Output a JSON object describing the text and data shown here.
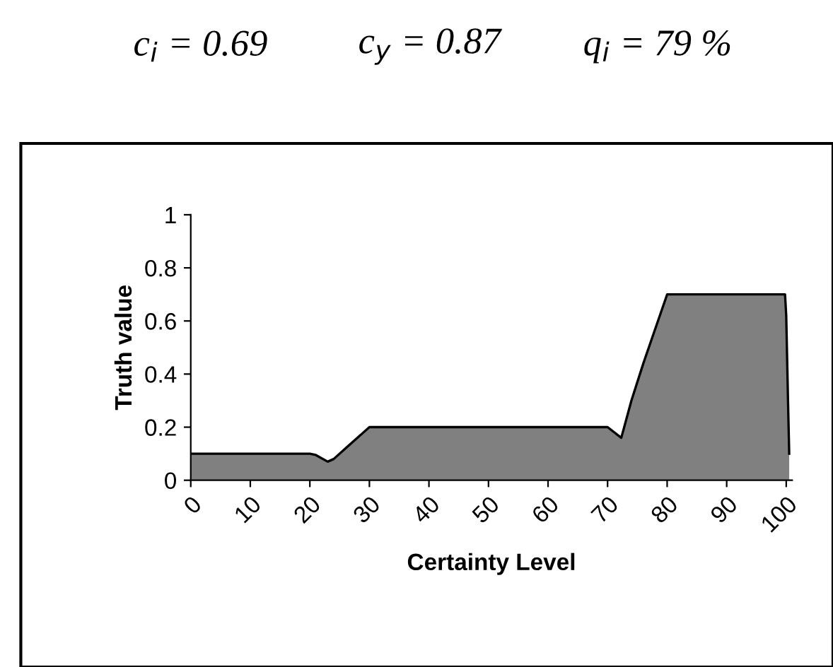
{
  "chart_data": {
    "type": "area",
    "xlabel": "Certainty Level",
    "ylabel": "Truth value",
    "annotations": [
      "c$_{i}$ = 0.69",
      "c$_{y}$ = 0.87",
      "q$_{i}$ = 79 %"
    ],
    "x": [
      0,
      20,
      21,
      23,
      24,
      26,
      28,
      30,
      70,
      72.3,
      74,
      76,
      78,
      80,
      99.8,
      100,
      100.3,
      100.5
    ],
    "series": [
      {
        "color": "#808080",
        "values": [
          0.1,
          0.1,
          0.095,
          0.07,
          0.08,
          0.12,
          0.16,
          0.2,
          0.2,
          0.16,
          0.3,
          0.44,
          0.57,
          0.7,
          0.7,
          0.62,
          0.3,
          0.1
        ]
      }
    ],
    "xlim": [
      0,
      101
    ],
    "ylim": [
      0,
      1
    ],
    "xticks": [
      0,
      10,
      20,
      30,
      40,
      50,
      60,
      70,
      80,
      90,
      100
    ],
    "yticks": [
      0,
      0.2,
      0.4,
      0.6,
      0.8,
      1
    ],
    "grid": false,
    "legend": false
  }
}
